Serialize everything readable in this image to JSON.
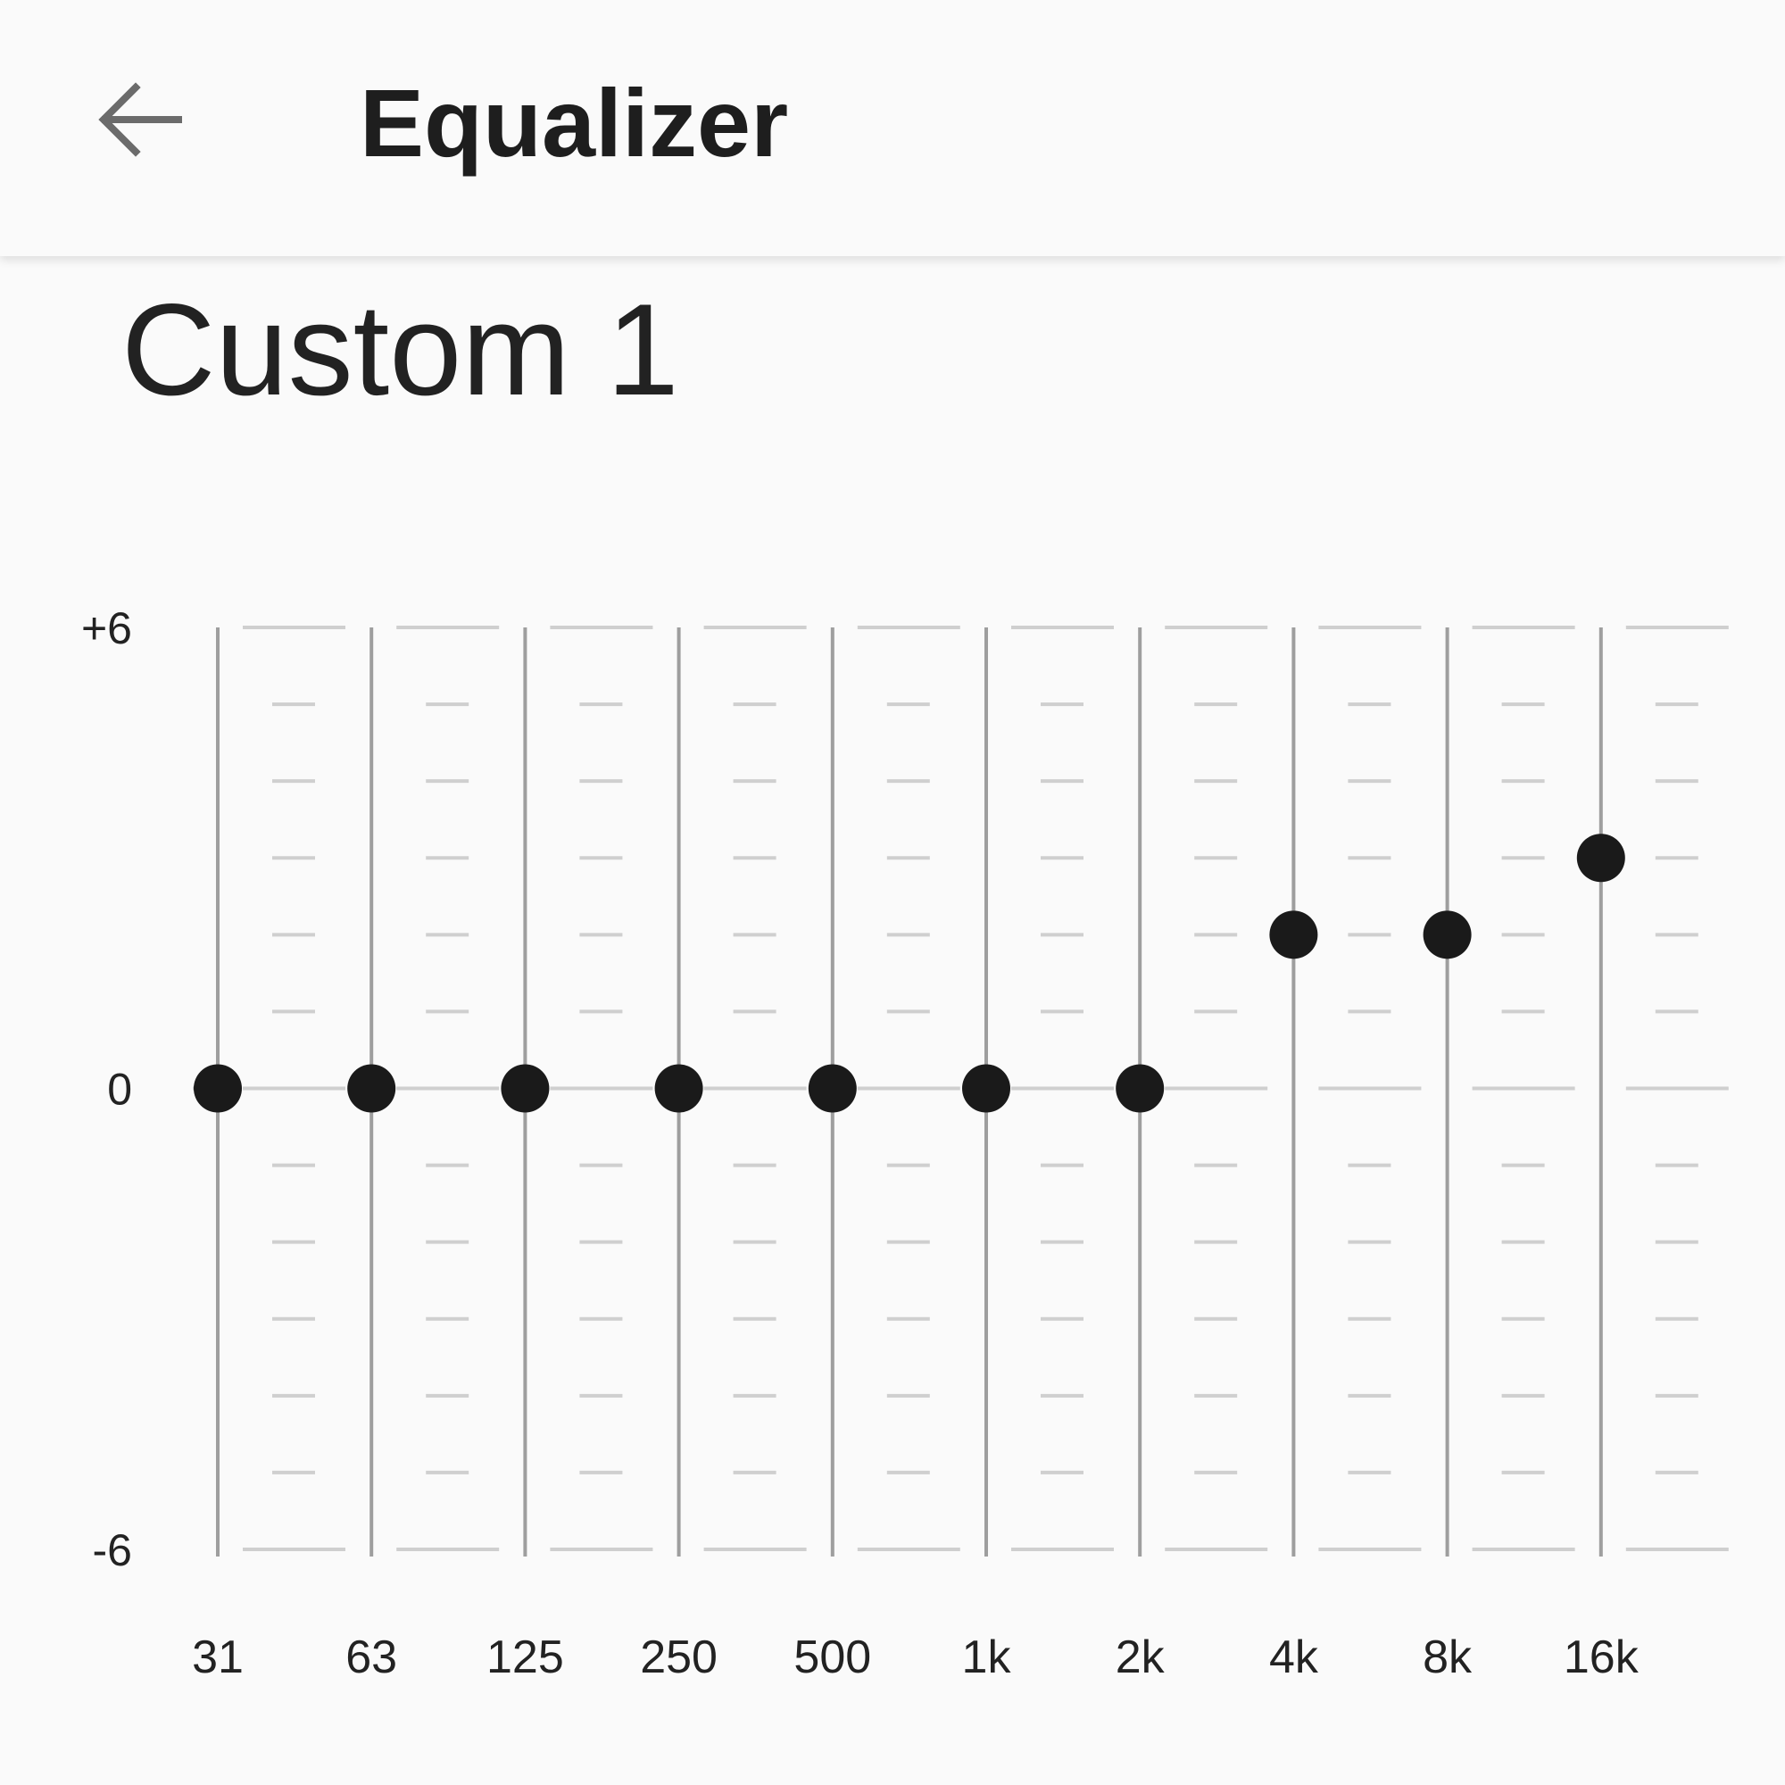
{
  "header": {
    "title": "Equalizer",
    "back_icon": "arrow-left-icon"
  },
  "preset": {
    "name": "Custom 1"
  },
  "colors": {
    "knob": "#1a1a1a",
    "track": "#9e9e9e",
    "grid": "#cfcfcf",
    "background": "#fafafa"
  },
  "chart_data": {
    "type": "scatter",
    "categories": [
      "31",
      "63",
      "125",
      "250",
      "500",
      "1k",
      "2k",
      "4k",
      "8k",
      "16k"
    ],
    "values": [
      0,
      0,
      0,
      0,
      0,
      0,
      0,
      2,
      2,
      3
    ],
    "ylim": [
      -6,
      6
    ],
    "y_ticks": [
      "+6",
      "0",
      "-6"
    ],
    "y_tick_values": [
      6,
      0,
      -6
    ],
    "grid": true
  }
}
